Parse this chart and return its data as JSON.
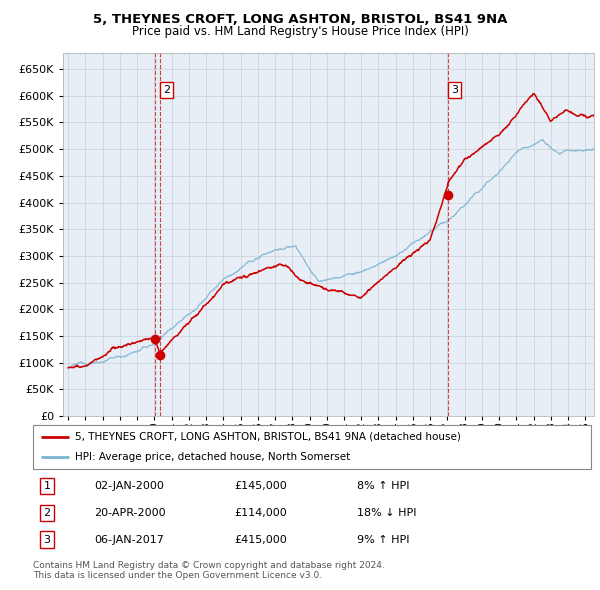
{
  "title1": "5, THEYNES CROFT, LONG ASHTON, BRISTOL, BS41 9NA",
  "title2": "Price paid vs. HM Land Registry's House Price Index (HPI)",
  "ylabel_ticks": [
    0,
    50000,
    100000,
    150000,
    200000,
    250000,
    300000,
    350000,
    400000,
    450000,
    500000,
    550000,
    600000,
    650000
  ],
  "ylim": [
    0,
    680000
  ],
  "xlim_start": 1994.7,
  "xlim_end": 2025.5,
  "xtick_years": [
    1995,
    1996,
    1997,
    1998,
    1999,
    2000,
    2001,
    2002,
    2003,
    2004,
    2005,
    2006,
    2007,
    2008,
    2009,
    2010,
    2011,
    2012,
    2013,
    2014,
    2015,
    2016,
    2017,
    2018,
    2019,
    2020,
    2021,
    2022,
    2023,
    2024,
    2025
  ],
  "sale_dates": [
    2000.02,
    2000.3,
    2017.02
  ],
  "sale_prices": [
    145000,
    114000,
    415000
  ],
  "sale_labels": [
    "1",
    "2",
    "3"
  ],
  "show_top_label": [
    false,
    true,
    true
  ],
  "legend_line1": "5, THEYNES CROFT, LONG ASHTON, BRISTOL, BS41 9NA (detached house)",
  "legend_line2": "HPI: Average price, detached house, North Somerset",
  "table_rows": [
    {
      "num": "1",
      "date": "02-JAN-2000",
      "price": "£145,000",
      "change": "8% ↑ HPI"
    },
    {
      "num": "2",
      "date": "20-APR-2000",
      "price": "£114,000",
      "change": "18% ↓ HPI"
    },
    {
      "num": "3",
      "date": "06-JAN-2017",
      "price": "£415,000",
      "change": "9% ↑ HPI"
    }
  ],
  "footnote1": "Contains HM Land Registry data © Crown copyright and database right 2024.",
  "footnote2": "This data is licensed under the Open Government Licence v3.0.",
  "red_color": "#cc0000",
  "blue_color": "#7fb3d3",
  "bg_color": "#e8eef5",
  "grid_color": "#c8d0d8",
  "vline_red": "#cc0000",
  "vline_blue": "#aaaacc"
}
